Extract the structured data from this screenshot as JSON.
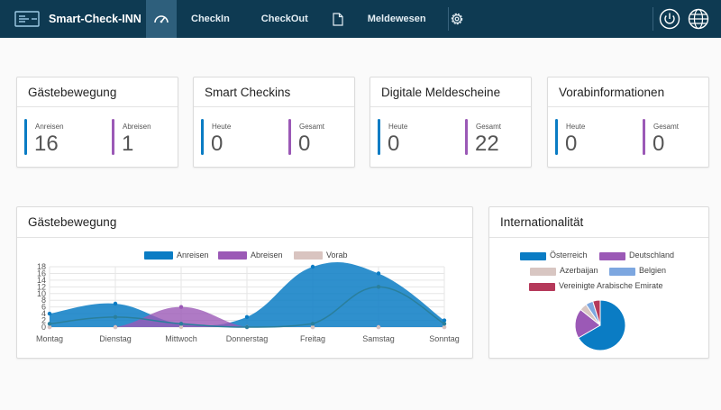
{
  "app": {
    "name": "Smart-Check-INN"
  },
  "nav": {
    "items": [
      {
        "label": "CheckIn"
      },
      {
        "label": "CheckOut"
      },
      {
        "label": "Meldewesen"
      }
    ],
    "icons": [
      "dashboard-icon",
      "document-icon",
      "gear-icon",
      "power-icon",
      "globe-icon"
    ],
    "colors": {
      "bar": "#0e3a52",
      "active": "#2e5f7c"
    }
  },
  "cards": [
    {
      "title": "Gästebewegung",
      "stats": [
        {
          "label": "Anreisen",
          "value": "16",
          "color": "#0a7cc4"
        },
        {
          "label": "Abreisen",
          "value": "1",
          "color": "#9b59b6"
        }
      ]
    },
    {
      "title": "Smart Checkins",
      "stats": [
        {
          "label": "Heute",
          "value": "0",
          "color": "#0a7cc4"
        },
        {
          "label": "Gesamt",
          "value": "0",
          "color": "#9b59b6"
        }
      ]
    },
    {
      "title": "Digitale Meldescheine",
      "stats": [
        {
          "label": "Heute",
          "value": "0",
          "color": "#0a7cc4"
        },
        {
          "label": "Gesamt",
          "value": "22",
          "color": "#9b59b6"
        }
      ]
    },
    {
      "title": "Vorabinformationen",
      "stats": [
        {
          "label": "Heute",
          "value": "0",
          "color": "#0a7cc4"
        },
        {
          "label": "Gesamt",
          "value": "0",
          "color": "#9b59b6"
        }
      ]
    }
  ],
  "panels": {
    "movement": {
      "title": "Gästebewegung"
    },
    "intl": {
      "title": "Internationalität"
    }
  },
  "chart_data": [
    {
      "type": "area",
      "categories": [
        "Montag",
        "Dienstag",
        "Mittwoch",
        "Donnerstag",
        "Freitag",
        "Samstag",
        "Sonntag"
      ],
      "series": [
        {
          "name": "Anreisen",
          "color": "#0a7cc4",
          "values": [
            4,
            7,
            1,
            3,
            18,
            16,
            2
          ]
        },
        {
          "name": "Abreisen",
          "color": "#9b59b6",
          "values": [
            0,
            0,
            6,
            0,
            0,
            0,
            0
          ]
        },
        {
          "name": "Vorab",
          "color": "#d9c4c0",
          "values": [
            0,
            0,
            0,
            0,
            0,
            0,
            0
          ]
        },
        {
          "name": "",
          "color": "#2a7f9c",
          "values": [
            1,
            3,
            1,
            0,
            1,
            12,
            1
          ]
        }
      ],
      "yticks": [
        0,
        2,
        4,
        6,
        8,
        10,
        12,
        14,
        16,
        18
      ],
      "ylim": [
        0,
        18
      ],
      "grid": true,
      "legend": "top"
    },
    {
      "type": "pie",
      "labels": [
        "Österreich",
        "Deutschland",
        "Azerbaijan",
        "Belgien",
        "Vereinigte Arabische Emirate"
      ],
      "values": [
        14,
        4,
        1,
        1,
        1
      ],
      "colors": [
        "#0a7cc4",
        "#9b59b6",
        "#d8c6c2",
        "#7da7e0",
        "#b5395a"
      ],
      "legend": "top"
    }
  ]
}
